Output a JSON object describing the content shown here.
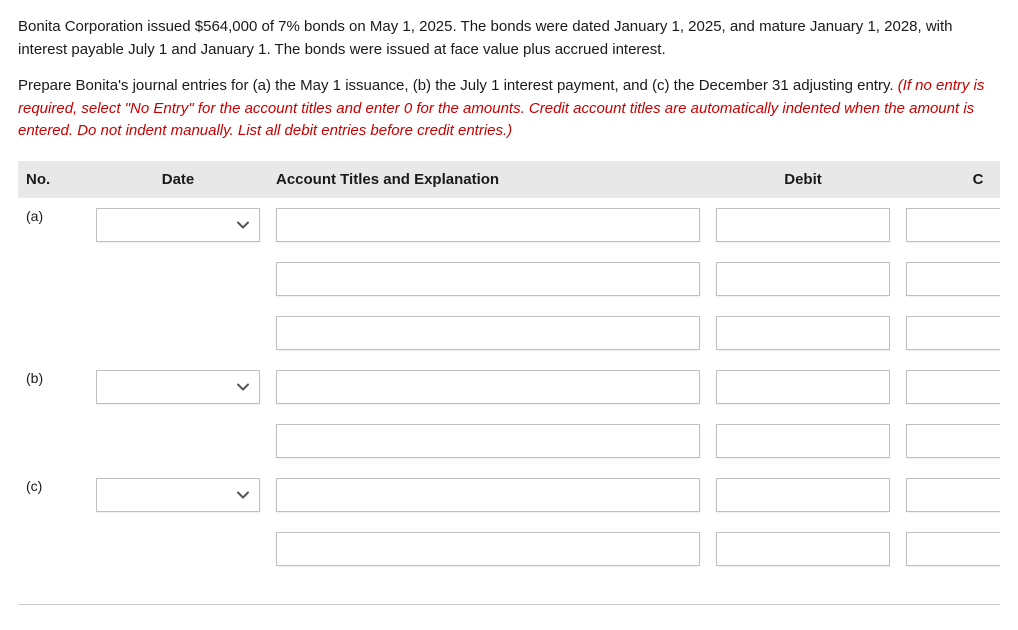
{
  "problem": {
    "para1": "Bonita Corporation issued $564,000 of 7% bonds on May 1, 2025. The bonds were dated January 1, 2025, and mature January 1, 2028, with interest payable July 1 and January 1. The bonds were issued at face value plus accrued interest.",
    "para2_lead": "Prepare Bonita's journal entries for (a) the May 1 issuance, (b) the July 1 interest payment, and (c) the December 31 adjusting entry. ",
    "para2_italic": "(If no entry is required, select \"No Entry\" for the account titles and enter 0 for the amounts. Credit account titles are automatically indented when the amount is entered. Do not indent manually. List all debit entries before credit entries.)"
  },
  "headers": {
    "no": "No.",
    "date": "Date",
    "account": "Account Titles and Explanation",
    "debit": "Debit",
    "credit": "C"
  },
  "rows": [
    {
      "no": "(a)",
      "hasDate": true,
      "firstOfGroup": true
    },
    {
      "no": "",
      "hasDate": false,
      "firstOfGroup": false
    },
    {
      "no": "",
      "hasDate": false,
      "firstOfGroup": false
    },
    {
      "no": "(b)",
      "hasDate": true,
      "firstOfGroup": true
    },
    {
      "no": "",
      "hasDate": false,
      "firstOfGroup": false
    },
    {
      "no": "(c)",
      "hasDate": true,
      "firstOfGroup": true
    },
    {
      "no": "",
      "hasDate": false,
      "firstOfGroup": false
    }
  ],
  "style": {
    "header_bg": "#e8e8e8",
    "border_color": "#bfbfbf",
    "italic_color": "#c80000",
    "chevron_color": "#555555"
  }
}
